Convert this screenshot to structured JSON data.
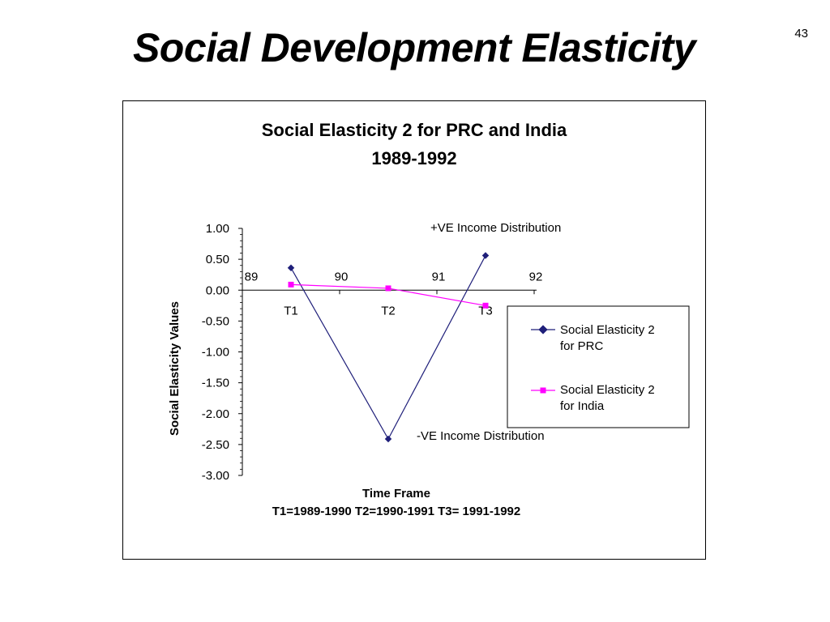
{
  "slide": {
    "title": "Social Development Elasticity",
    "page_number": "43"
  },
  "chart_data": {
    "type": "line",
    "title_lines": [
      "Social Elasticity 2  for PRC and India",
      "1989-1992"
    ],
    "ylabel": "Social Elasticity Values",
    "xlabel_lines": [
      "Time Frame",
      "T1=1989-1990  T2=1990-1991  T3= 1991-1992"
    ],
    "ylim": [
      -3.0,
      1.0
    ],
    "y_ticks": [
      "1.00",
      "0.50",
      "0.00",
      "-0.50",
      "-1.00",
      "-1.50",
      "-2.00",
      "-2.50",
      "-3.00"
    ],
    "y_tick_values": [
      1.0,
      0.5,
      0.0,
      -0.5,
      -1.0,
      -1.5,
      -2.0,
      -2.5,
      -3.0
    ],
    "x_year_labels": [
      "89",
      "90",
      "91",
      "92"
    ],
    "categories": [
      "T1",
      "T2",
      "T3"
    ],
    "series": [
      {
        "name": "Social Elasticity 2 for PRC",
        "name_lines": [
          "Social Elasticity 2",
          "for PRC"
        ],
        "values": [
          0.36,
          -2.41,
          0.56
        ],
        "color": "#1f1f7a",
        "marker": "diamond"
      },
      {
        "name": "Social Elasticity 2 for India",
        "name_lines": [
          "Social Elasticity 2",
          "for India"
        ],
        "values": [
          0.09,
          0.03,
          -0.25
        ],
        "color": "#ff00ff",
        "marker": "square"
      }
    ],
    "annotations": [
      "+VE Income Distribution",
      "-VE Income Distribution"
    ],
    "legend_position": "right",
    "grid": false
  }
}
